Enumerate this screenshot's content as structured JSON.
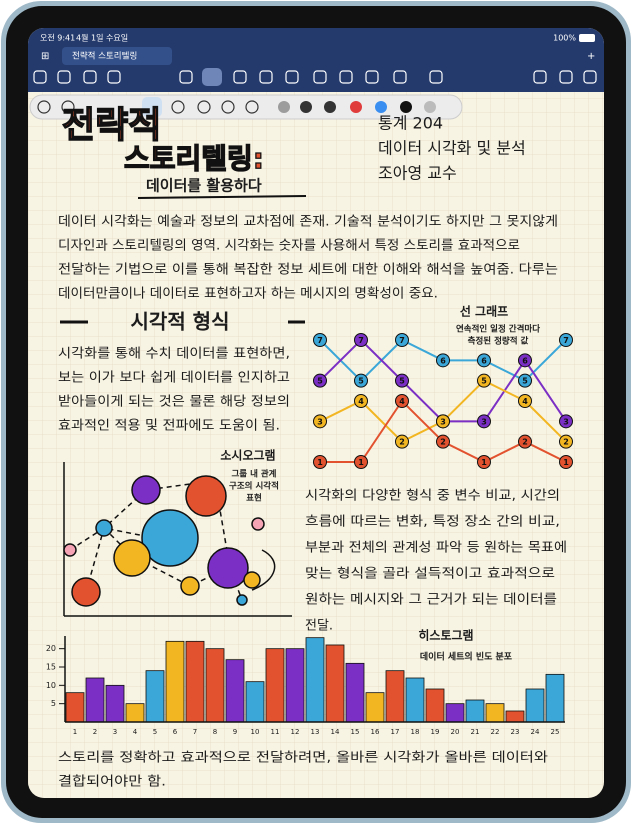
{
  "status_bar": {
    "time": "오전 9:41",
    "date": "4월 1일 수요일",
    "battery": "100%"
  },
  "tab": {
    "title": "전략적 스토리텔링"
  },
  "note": {
    "title_lines": [
      "전략적",
      "스토리텔링:"
    ],
    "subtitle": "데이터를 활용하다",
    "course": [
      "통계 204",
      "데이터 시각화 및 분석",
      "조아영 교수"
    ],
    "intro": [
      "데이터 시각화는 예술과 정보의 교차점에 존재. 기술적 분석이기도 하지만 그 못지않게",
      "디자인과 스토리텔링의 영역. 시각화는 숫자를 사용해서 특정 스토리를 효과적으로",
      "전달하는 기법으로 이를 통해 복잡한 정보 세트에 대한 이해와 해석을 높여줌. 다루는",
      "데이터만큼이나 데이터로 표현하고자 하는 메시지의 명확성이 중요."
    ],
    "section_heading": "시각적 형식",
    "section_text": [
      "시각화를 통해 수치 데이터를 표현하면,",
      "보는 이가 보다 쉽게 데이터를 인지하고",
      "받아들이게 되는 것은 물론 해당 정보의",
      "효과적인 적용 및 전파에도 도움이 됨."
    ],
    "sociogram": {
      "title": "소시오그램",
      "caption": [
        "그룹 내 관계",
        "구조의 시각적",
        "표현"
      ]
    },
    "body": [
      "시각화의 다양한 형식 중 변수 비교, 시간의",
      "흐름에 따르는 변화, 특정 장소 간의 비교,",
      "부분과 전체의 관계성 파악 등 원하는 목표에",
      "맞는 형식을 골라 설득적이고 효과적으로",
      "원하는 메시지와 그 근거가 되는 데이터를",
      "전달."
    ],
    "closing": [
      "스토리를 정확하고 효과적으로 전달하려면, 올바른 시각화가 올바른 데이터와",
      "결합되어야만 함."
    ]
  },
  "line_chart": {
    "type": "line",
    "title": "선 그래프",
    "subtitle": [
      "연속적인 일정 간격마다",
      "측정된 정량적 값"
    ],
    "ylim": [
      1,
      7
    ],
    "series": [
      {
        "color": "#3aa7d8",
        "values": [
          7,
          5,
          7,
          6,
          6,
          5,
          7
        ]
      },
      {
        "color": "#7b2fc4",
        "values": [
          5,
          7,
          5,
          3,
          3,
          6,
          3
        ]
      },
      {
        "color": "#f2b622",
        "values": [
          3,
          4,
          2,
          3,
          5,
          4,
          2
        ]
      },
      {
        "color": "#e2522f",
        "values": [
          1,
          1,
          4,
          2,
          1,
          2,
          1
        ]
      }
    ]
  },
  "histogram": {
    "type": "bar",
    "title": "히스토그램",
    "subtitle": "데이터 세트의 빈도 분포",
    "categories": [
      "1",
      "2",
      "3",
      "4",
      "5",
      "6",
      "7",
      "8",
      "9",
      "10",
      "11",
      "12",
      "13",
      "14",
      "15",
      "16",
      "17",
      "18",
      "19",
      "20",
      "21",
      "22",
      "23",
      "24",
      "25"
    ],
    "values": [
      8,
      12,
      10,
      5,
      14,
      22,
      22,
      20,
      17,
      11,
      20,
      20,
      23,
      21,
      16,
      8,
      14,
      12,
      9,
      5,
      6,
      5,
      3,
      9,
      13
    ],
    "colors": [
      "#e2522f",
      "#7b2fc4",
      "#7b2fc4",
      "#f2b622",
      "#3aa7d8",
      "#f2b622",
      "#e2522f",
      "#e2522f",
      "#7b2fc4",
      "#3aa7d8",
      "#e2522f",
      "#7b2fc4",
      "#3aa7d8",
      "#e2522f",
      "#7b2fc4",
      "#f2b622",
      "#e2522f",
      "#3aa7d8",
      "#e2522f",
      "#7b2fc4",
      "#3aa7d8",
      "#f2b622",
      "#e2522f",
      "#3aa7d8",
      "#3aa7d8"
    ],
    "ylim": [
      0,
      24
    ],
    "yticks": [
      5,
      10,
      15,
      20
    ]
  }
}
